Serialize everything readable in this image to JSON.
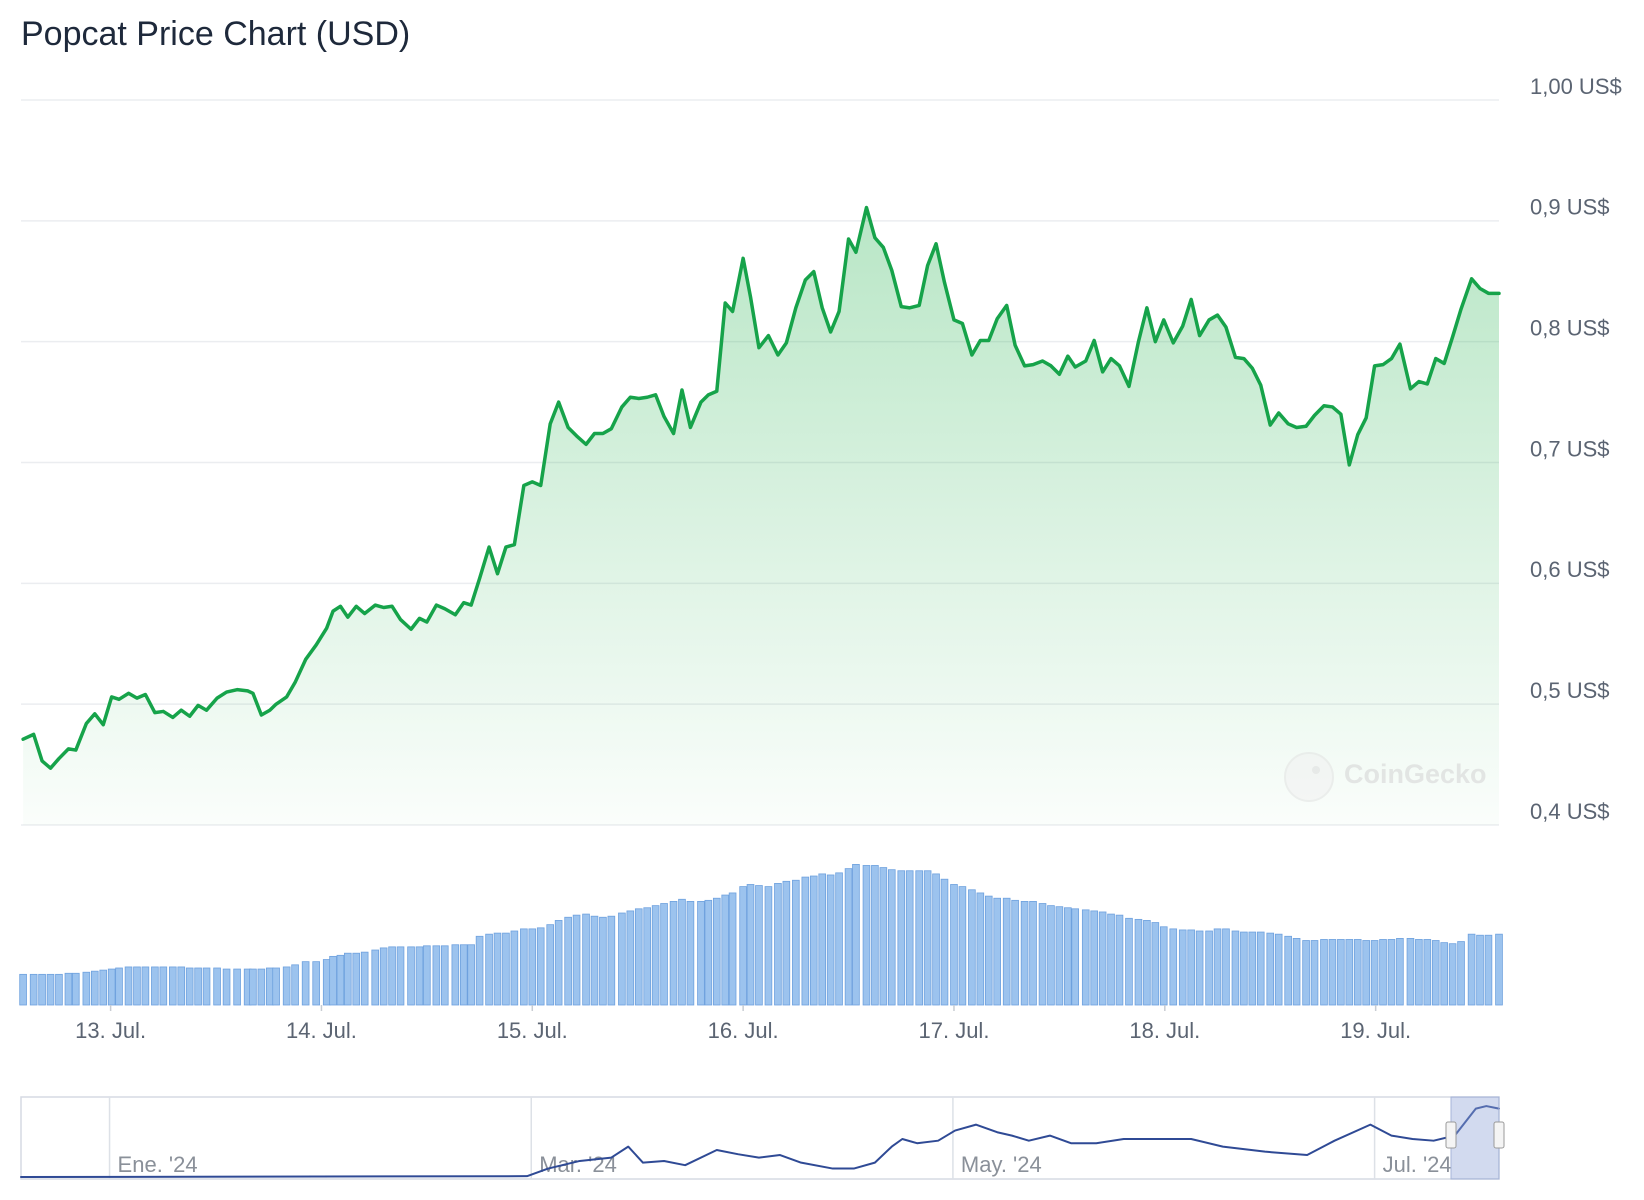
{
  "chart_data": [
    {
      "type": "line",
      "title": "Popcat Price Chart (USD)",
      "color": "#16a34a",
      "volume_color": "#9cc3ee",
      "grid": true,
      "watermark": "CoinGecko",
      "xlim": [
        12.575,
        19.585
      ],
      "ylim": [
        0.4,
        1.0
      ],
      "volume_lim": [
        0,
        140
      ],
      "xticks": [
        {
          "value": 13,
          "label": "13. Jul."
        },
        {
          "value": 14,
          "label": "14. Jul."
        },
        {
          "value": 15,
          "label": "15. Jul."
        },
        {
          "value": 16,
          "label": "16. Jul."
        },
        {
          "value": 17,
          "label": "17. Jul."
        },
        {
          "value": 18,
          "label": "18. Jul."
        },
        {
          "value": 19,
          "label": "19. Jul."
        }
      ],
      "yticks": [
        {
          "value": 0.4,
          "label": "0,4 US$"
        },
        {
          "value": 0.5,
          "label": "0,5 US$"
        },
        {
          "value": 0.6,
          "label": "0,6 US$"
        },
        {
          "value": 0.7,
          "label": "0,7 US$"
        },
        {
          "value": 0.8,
          "label": "0,8 US$"
        },
        {
          "value": 0.9,
          "label": "0,9 US$"
        },
        {
          "value": 1.0,
          "label": "1,00 US$"
        }
      ],
      "x": [
        12.585,
        12.635,
        12.675,
        12.715,
        12.755,
        12.8,
        12.835,
        12.885,
        12.925,
        12.965,
        13.005,
        13.04,
        13.085,
        13.125,
        13.165,
        13.21,
        13.25,
        13.295,
        13.335,
        13.375,
        13.415,
        13.455,
        13.505,
        13.55,
        13.6,
        13.65,
        13.675,
        13.715,
        13.755,
        13.785,
        13.835,
        13.875,
        13.925,
        13.975,
        14.025,
        14.055,
        14.09,
        14.125,
        14.165,
        14.205,
        14.255,
        14.295,
        14.335,
        14.375,
        14.425,
        14.465,
        14.5,
        14.545,
        14.585,
        14.635,
        14.675,
        14.71,
        14.75,
        14.795,
        14.835,
        14.875,
        14.915,
        14.96,
        15.0,
        15.04,
        15.085,
        15.125,
        15.17,
        15.21,
        15.255,
        15.295,
        15.335,
        15.375,
        15.425,
        15.465,
        15.505,
        15.545,
        15.585,
        15.625,
        15.67,
        15.71,
        15.75,
        15.8,
        15.835,
        15.875,
        15.915,
        15.95,
        16.0,
        16.035,
        16.075,
        16.12,
        16.165,
        16.205,
        16.25,
        16.295,
        16.335,
        16.375,
        16.415,
        16.455,
        16.5,
        16.535,
        16.585,
        16.625,
        16.665,
        16.705,
        16.75,
        16.79,
        16.835,
        16.875,
        16.915,
        16.955,
        17.0,
        17.04,
        17.085,
        17.125,
        17.165,
        17.205,
        17.25,
        17.29,
        17.335,
        17.375,
        17.42,
        17.46,
        17.5,
        17.54,
        17.575,
        17.625,
        17.665,
        17.705,
        17.745,
        17.785,
        17.83,
        17.875,
        17.915,
        17.955,
        17.995,
        18.04,
        18.085,
        18.125,
        18.165,
        18.21,
        18.25,
        18.29,
        18.335,
        18.375,
        18.415,
        18.455,
        18.5,
        18.54,
        18.585,
        18.625,
        18.67,
        18.71,
        18.755,
        18.795,
        18.835,
        18.875,
        18.915,
        18.955,
        18.995,
        19.035,
        19.075,
        19.115,
        19.165,
        19.205,
        19.245,
        19.285,
        19.325,
        19.365,
        19.405,
        19.455,
        19.495,
        19.535,
        19.585
      ],
      "values": [
        0.471,
        0.475,
        0.453,
        0.447,
        0.455,
        0.463,
        0.462,
        0.484,
        0.492,
        0.483,
        0.506,
        0.504,
        0.509,
        0.505,
        0.508,
        0.493,
        0.494,
        0.489,
        0.495,
        0.49,
        0.499,
        0.495,
        0.505,
        0.51,
        0.512,
        0.511,
        0.509,
        0.491,
        0.495,
        0.5,
        0.506,
        0.518,
        0.537,
        0.549,
        0.563,
        0.577,
        0.581,
        0.572,
        0.581,
        0.575,
        0.582,
        0.58,
        0.581,
        0.57,
        0.562,
        0.571,
        0.568,
        0.582,
        0.579,
        0.574,
        0.584,
        0.582,
        0.604,
        0.63,
        0.608,
        0.63,
        0.632,
        0.681,
        0.684,
        0.681,
        0.732,
        0.75,
        0.729,
        0.722,
        0.715,
        0.724,
        0.724,
        0.728,
        0.746,
        0.754,
        0.753,
        0.754,
        0.756,
        0.738,
        0.724,
        0.76,
        0.729,
        0.75,
        0.756,
        0.759,
        0.832,
        0.825,
        0.869,
        0.837,
        0.795,
        0.805,
        0.789,
        0.799,
        0.828,
        0.851,
        0.858,
        0.828,
        0.808,
        0.825,
        0.885,
        0.874,
        0.911,
        0.886,
        0.878,
        0.859,
        0.829,
        0.828,
        0.83,
        0.863,
        0.881,
        0.849,
        0.818,
        0.815,
        0.789,
        0.801,
        0.801,
        0.819,
        0.83,
        0.797,
        0.78,
        0.781,
        0.784,
        0.78,
        0.773,
        0.788,
        0.779,
        0.784,
        0.801,
        0.775,
        0.786,
        0.78,
        0.763,
        0.8,
        0.828,
        0.8,
        0.818,
        0.799,
        0.813,
        0.835,
        0.805,
        0.818,
        0.822,
        0.812,
        0.787,
        0.786,
        0.778,
        0.764,
        0.731,
        0.741,
        0.732,
        0.729,
        0.73,
        0.739,
        0.747,
        0.746,
        0.74,
        0.698,
        0.723,
        0.737,
        0.78,
        0.781,
        0.786,
        0.798,
        0.761,
        0.767,
        0.765,
        0.786,
        0.782,
        0.804,
        0.827,
        0.852,
        0.844,
        0.84,
        0.84
      ],
      "volume": [
        29,
        29,
        29,
        29,
        29,
        30,
        30,
        31,
        32,
        33,
        34,
        35,
        36,
        36,
        36,
        36,
        36,
        36,
        36,
        35,
        35,
        35,
        35,
        34,
        34,
        34,
        34,
        34,
        35,
        35,
        36,
        38,
        41,
        41,
        43,
        46,
        47,
        49,
        49,
        50,
        52,
        54,
        55,
        55,
        55,
        55,
        56,
        56,
        56,
        57,
        57,
        57,
        65,
        67,
        68,
        68,
        70,
        72,
        72,
        73,
        76,
        80,
        83,
        85,
        86,
        84,
        83,
        84,
        87,
        89,
        91,
        92,
        94,
        96,
        98,
        100,
        98,
        98,
        99,
        101,
        104,
        106,
        112,
        114,
        113,
        112,
        115,
        117,
        118,
        121,
        122,
        124,
        123,
        125,
        129,
        133,
        132,
        132,
        130,
        128,
        127,
        127,
        127,
        127,
        124,
        119,
        114,
        112,
        109,
        106,
        103,
        101,
        101,
        99,
        98,
        98,
        96,
        94,
        93,
        92,
        91,
        90,
        89,
        88,
        86,
        85,
        82,
        81,
        80,
        78,
        74,
        72,
        71,
        71,
        70,
        70,
        72,
        72,
        70,
        69,
        69,
        69,
        68,
        67,
        65,
        63,
        61,
        61,
        62,
        62,
        62,
        62,
        62,
        61,
        61,
        62,
        62,
        63,
        63,
        62,
        62,
        61,
        59,
        58,
        60,
        67,
        66,
        66,
        67
      ]
    },
    {
      "type": "line",
      "color": "#2f4a95",
      "xlim": [
        0.58,
        7.59
      ],
      "ylim": [
        0,
        0.9
      ],
      "xticks": [
        {
          "value": 1,
          "label": "Ene. '24"
        },
        {
          "value": 3,
          "label": "Mar. '24"
        },
        {
          "value": 5,
          "label": "May. '24"
        },
        {
          "value": 7,
          "label": "Jul. '24"
        }
      ],
      "x": [
        0.58,
        2.98,
        3.08,
        3.23,
        3.38,
        3.46,
        3.53,
        3.63,
        3.73,
        3.88,
        3.98,
        4.08,
        4.18,
        4.28,
        4.43,
        4.53,
        4.63,
        4.71,
        4.76,
        4.83,
        4.93,
        5.01,
        5.11,
        5.21,
        5.28,
        5.36,
        5.46,
        5.56,
        5.68,
        5.81,
        5.96,
        6.13,
        6.28,
        6.48,
        6.68,
        6.81,
        6.98,
        7.08,
        7.18,
        7.28,
        7.38,
        7.48,
        7.53,
        7.59
      ],
      "values": [
        0.0,
        0.01,
        0.1,
        0.19,
        0.23,
        0.36,
        0.17,
        0.19,
        0.14,
        0.32,
        0.27,
        0.23,
        0.26,
        0.17,
        0.1,
        0.1,
        0.17,
        0.36,
        0.45,
        0.4,
        0.43,
        0.55,
        0.62,
        0.53,
        0.49,
        0.43,
        0.49,
        0.4,
        0.4,
        0.45,
        0.45,
        0.45,
        0.36,
        0.3,
        0.26,
        0.43,
        0.62,
        0.49,
        0.45,
        0.43,
        0.49,
        0.81,
        0.84,
        0.81
      ]
    }
  ]
}
